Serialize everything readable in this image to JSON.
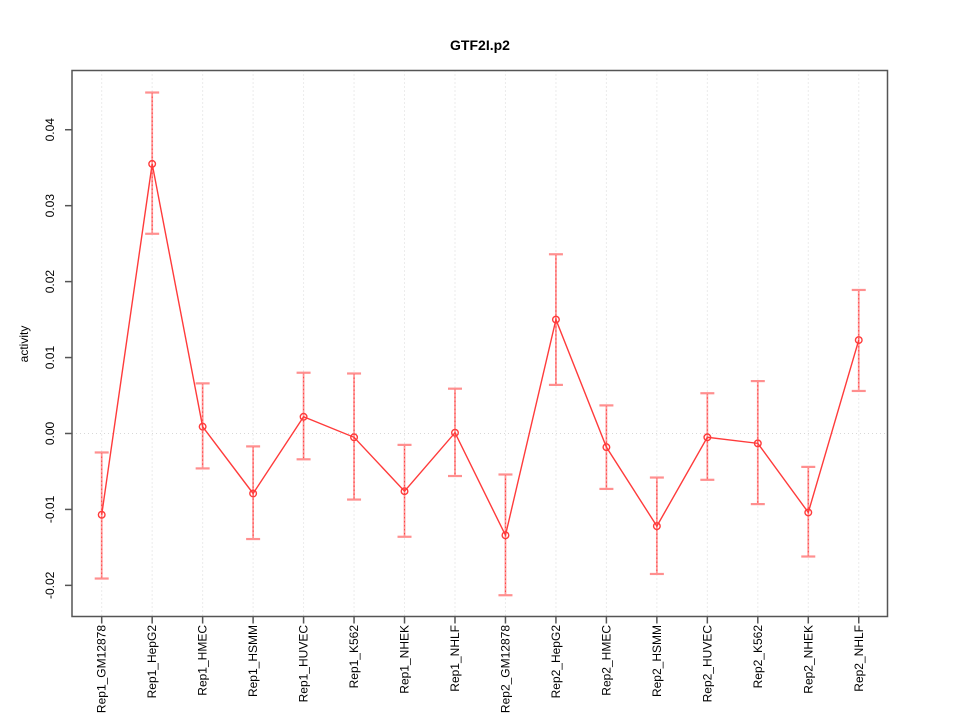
{
  "chart_data": {
    "type": "line",
    "title": "GTF2I.p2",
    "xlabel": "",
    "ylabel": "activity",
    "categories": [
      "Rep1_GM12878",
      "Rep1_HepG2",
      "Rep1_HMEC",
      "Rep1_HSMM",
      "Rep1_HUVEC",
      "Rep1_K562",
      "Rep1_NHEK",
      "Rep1_NHLF",
      "Rep2_GM12878",
      "Rep2_HepG2",
      "Rep2_HMEC",
      "Rep2_HSMM",
      "Rep2_HUVEC",
      "Rep2_K562",
      "Rep2_NHEK",
      "Rep2_NHLF"
    ],
    "series": [
      {
        "name": "activity",
        "values": [
          -0.0107,
          0.0355,
          0.0009,
          -0.0079,
          0.0022,
          -0.0005,
          -0.0076,
          0.0001,
          -0.0134,
          0.015,
          -0.0018,
          -0.0122,
          -0.0005,
          -0.0013,
          -0.0104,
          0.0123
        ],
        "error_upper": [
          -0.0025,
          0.0449,
          0.0066,
          -0.0017,
          0.008,
          0.0079,
          -0.0015,
          0.0059,
          -0.0054,
          0.0236,
          0.0037,
          -0.0058,
          0.0053,
          0.0069,
          -0.0044,
          0.0189
        ],
        "error_lower": [
          -0.0191,
          0.0263,
          -0.0046,
          -0.0139,
          -0.0034,
          -0.0087,
          -0.0136,
          -0.0056,
          -0.0213,
          0.0064,
          -0.0073,
          -0.0185,
          -0.0061,
          -0.0093,
          -0.0162,
          0.0056
        ]
      }
    ],
    "ytick_labels": [
      "0.04",
      "0.03",
      "0.02",
      "0.01",
      "0.00",
      "-0.01",
      "-0.02"
    ],
    "ytick_values": [
      0.04,
      0.03,
      0.02,
      0.01,
      0.0,
      -0.01,
      -0.02
    ],
    "ylim": [
      -0.0241,
      0.0478
    ],
    "grid": {
      "vertical": "dotted line at every category",
      "horizontal": "dotted line at y=0 only"
    },
    "legend": "none",
    "marker": "open-circle",
    "colors": {
      "line": "#ff3b3b",
      "marker": "#ff3b3b",
      "error_bar": "#ff8f8f",
      "error_bar_dots": "#ff4444",
      "grid": "#d8d8d8",
      "axis_box": "#555555",
      "text": "#000000",
      "background": "#ffffff"
    }
  }
}
